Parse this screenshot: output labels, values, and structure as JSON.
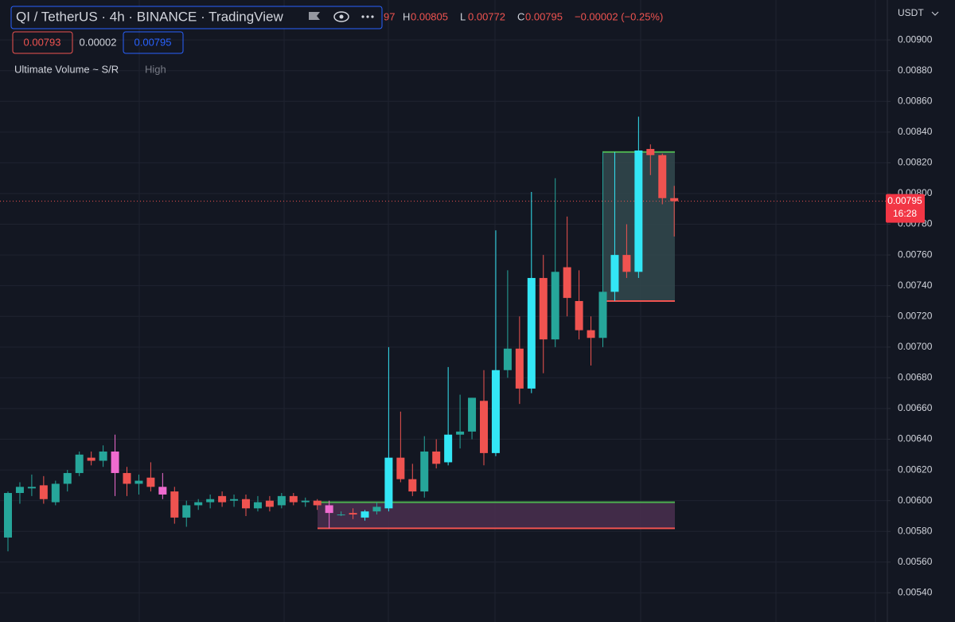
{
  "chart_data": {
    "type": "candlestick",
    "title": "QI / TetherUS · 4h · BINANCE · TradingView",
    "ohlc_partial": "97",
    "ohlc": [
      {
        "key": "H",
        "value": "0.00805"
      },
      {
        "key": "L",
        "value": "0.00772"
      },
      {
        "key": "C",
        "value": "0.00795"
      }
    ],
    "change": "−0.00002 (−0.25%)",
    "price_boxes": [
      "0.00793",
      "0.00002",
      "0.00795"
    ],
    "indicator": "Ultimate Volume ~ S/R",
    "indicator_setting": "High",
    "currency": "USDT",
    "last_price": {
      "value": 0.00795,
      "label": "0.00795"
    },
    "countdown": "16:28",
    "categories": [
      null,
      null,
      null,
      null,
      null,
      null,
      null,
      null,
      null,
      null,
      null,
      null,
      null,
      null,
      null,
      null,
      null,
      null,
      null,
      null,
      null,
      null,
      null,
      null,
      null,
      null,
      null,
      null,
      null,
      null,
      null,
      null,
      null,
      null,
      null,
      null,
      null,
      null,
      null,
      null,
      null,
      null,
      null,
      null,
      null,
      null,
      null,
      null,
      null,
      null,
      null,
      null,
      null,
      null,
      null,
      null,
      null
    ],
    "open": [
      0.00576,
      0.00605,
      0.00608,
      0.0061,
      0.00599,
      0.00611,
      0.00618,
      0.00628,
      0.00626,
      0.00632,
      0.00618,
      0.00611,
      0.00615,
      0.00609,
      0.00606,
      0.00589,
      0.00597,
      0.00599,
      0.00603,
      0.006,
      0.00601,
      0.00595,
      0.006,
      0.00597,
      0.00603,
      0.00599,
      0.006,
      0.00597,
      0.00591,
      0.00592,
      0.00589,
      0.00593,
      0.00595,
      0.00628,
      0.00614,
      0.00606,
      0.00632,
      0.00625,
      0.00643,
      0.00645,
      0.00665,
      0.00631,
      0.00685,
      0.00699,
      0.00673,
      0.00745,
      0.00705,
      0.00752,
      0.0073,
      0.00711,
      0.00706,
      0.00736,
      0.0076,
      0.00749,
      0.00829,
      0.00825,
      0.00797
    ],
    "high": [
      0.00606,
      0.00612,
      0.00617,
      0.00616,
      0.00613,
      0.0062,
      0.00632,
      0.00632,
      0.00636,
      0.00643,
      0.00622,
      0.00617,
      0.00625,
      0.00618,
      0.00609,
      0.006,
      0.00601,
      0.00604,
      0.00606,
      0.00604,
      0.00604,
      0.00603,
      0.00603,
      0.00605,
      0.00605,
      0.00602,
      0.00601,
      0.006,
      0.00593,
      0.00595,
      0.00594,
      0.00599,
      0.007,
      0.00658,
      0.00624,
      0.00642,
      0.0064,
      0.00687,
      0.00669,
      0.00667,
      0.00685,
      0.00776,
      0.0075,
      0.0072,
      0.00801,
      0.0076,
      0.0081,
      0.00785,
      0.0075,
      0.0072,
      0.00827,
      0.00827,
      0.0078,
      0.0085,
      0.00832,
      0.00826,
      0.00805
    ],
    "low": [
      0.00567,
      0.00598,
      0.00603,
      0.00598,
      0.00597,
      0.00606,
      0.00616,
      0.00623,
      0.00622,
      0.00603,
      0.00603,
      0.00604,
      0.00606,
      0.00601,
      0.00585,
      0.00583,
      0.00594,
      0.00595,
      0.00596,
      0.00596,
      0.0059,
      0.00593,
      0.00593,
      0.00595,
      0.00597,
      0.00596,
      0.00594,
      0.00582,
      0.0059,
      0.00588,
      0.00587,
      0.00591,
      0.00593,
      0.00612,
      0.00603,
      0.00602,
      0.00621,
      0.00623,
      0.00634,
      0.0064,
      0.00623,
      0.00629,
      0.0068,
      0.00663,
      0.0067,
      0.00683,
      0.007,
      0.0072,
      0.00705,
      0.00688,
      0.007,
      0.0073,
      0.00745,
      0.00745,
      0.00812,
      0.00793,
      0.00772
    ],
    "close": [
      0.00605,
      0.00609,
      0.00609,
      0.00601,
      0.00611,
      0.00618,
      0.0063,
      0.00626,
      0.00632,
      0.00618,
      0.00611,
      0.00613,
      0.00609,
      0.00604,
      0.00589,
      0.00597,
      0.00599,
      0.00601,
      0.00599,
      0.00601,
      0.00595,
      0.00599,
      0.00596,
      0.00603,
      0.00599,
      0.006,
      0.00597,
      0.00592,
      0.00591,
      0.00591,
      0.00593,
      0.00596,
      0.00628,
      0.00614,
      0.00606,
      0.00632,
      0.00624,
      0.00643,
      0.00645,
      0.00667,
      0.00631,
      0.00685,
      0.00699,
      0.00673,
      0.00745,
      0.00705,
      0.00749,
      0.00732,
      0.00711,
      0.00706,
      0.00736,
      0.0076,
      0.00749,
      0.00828,
      0.00825,
      0.00797,
      0.00795
    ],
    "colors": [
      "#26a69a",
      "#26a69a",
      "#26a69a",
      "#ef5350",
      "#26a69a",
      "#26a69a",
      "#26a69a",
      "#ef5350",
      "#26a69a",
      "#f06bd0",
      "#ef5350",
      "#26a69a",
      "#ef5350",
      "#f06bd0",
      "#ef5350",
      "#26a69a",
      "#26a69a",
      "#26a69a",
      "#ef5350",
      "#26a69a",
      "#ef5350",
      "#26a69a",
      "#ef5350",
      "#26a69a",
      "#ef5350",
      "#26a69a",
      "#ef5350",
      "#f06bd0",
      "#26a69a",
      "#ef5350",
      "#33e6f5",
      "#26a69a",
      "#33e6f5",
      "#ef5350",
      "#ef5350",
      "#26a69a",
      "#ef5350",
      "#33e6f5",
      "#26a69a",
      "#26a69a",
      "#ef5350",
      "#33e6f5",
      "#26a69a",
      "#ef5350",
      "#33e6f5",
      "#ef5350",
      "#26a69a",
      "#ef5350",
      "#ef5350",
      "#ef5350",
      "#26a69a",
      "#33e6f5",
      "#ef5350",
      "#33e6f5",
      "#ef5350",
      "#ef5350",
      "#ef5350"
    ],
    "zones": [
      {
        "top": 0.00599,
        "bottom": 0.00582,
        "fill": "#4a2f4f"
      },
      {
        "top": 0.00827,
        "bottom": 0.0073,
        "fill": "#33494d"
      }
    ],
    "ylim": [
      0.00521,
      0.00926
    ],
    "yticks": [
      {
        "value": 0.0054,
        "label": "0.00540"
      },
      {
        "value": 0.0056,
        "label": "0.00560"
      },
      {
        "value": 0.0058,
        "label": "0.00580"
      },
      {
        "value": 0.006,
        "label": "0.00600"
      },
      {
        "value": 0.0062,
        "label": "0.00620"
      },
      {
        "value": 0.0064,
        "label": "0.00640"
      },
      {
        "value": 0.0066,
        "label": "0.00660"
      },
      {
        "value": 0.0068,
        "label": "0.00680"
      },
      {
        "value": 0.007,
        "label": "0.00700"
      },
      {
        "value": 0.0072,
        "label": "0.00720"
      },
      {
        "value": 0.0074,
        "label": "0.00740"
      },
      {
        "value": 0.0076,
        "label": "0.00760"
      },
      {
        "value": 0.0078,
        "label": "0.00780"
      },
      {
        "value": 0.008,
        "label": "0.00800"
      },
      {
        "value": 0.0082,
        "label": "0.00820"
      },
      {
        "value": 0.0084,
        "label": "0.00840"
      },
      {
        "value": 0.0086,
        "label": "0.00860"
      },
      {
        "value": 0.0088,
        "label": "0.00880"
      },
      {
        "value": 0.009,
        "label": "0.00900"
      }
    ],
    "grid": true
  }
}
